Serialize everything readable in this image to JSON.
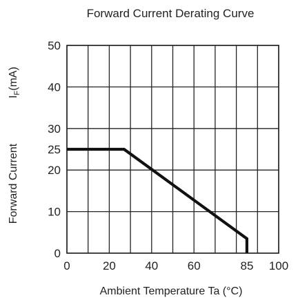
{
  "chart_data": {
    "type": "line",
    "title": "Forward Current Derating Curve",
    "xlabel": "Ambient Temperature Ta (°C)",
    "ylabel_main": "Forward Current",
    "ylabel_unit": "I",
    "ylabel_unit_sub": "F",
    "ylabel_unit_tail": "(mA)",
    "xlim": [
      0,
      100
    ],
    "ylim": [
      0,
      50
    ],
    "x_ticks": [
      "0",
      "20",
      "40",
      "60",
      "85",
      "100"
    ],
    "x_tick_values": [
      0,
      20,
      40,
      60,
      85,
      100
    ],
    "y_ticks": [
      "0",
      "10",
      "20",
      "25",
      "30",
      "40",
      "50"
    ],
    "y_tick_values": [
      0,
      10,
      20,
      25,
      30,
      40,
      50
    ],
    "grid_x": [
      0,
      10,
      20,
      30,
      40,
      50,
      60,
      70,
      80,
      90,
      100
    ],
    "grid_y": [
      0,
      10,
      20,
      30,
      40,
      50
    ],
    "grid": true,
    "series": [
      {
        "x": [
          0,
          27,
          85,
          85
        ],
        "y": [
          25,
          25,
          3.5,
          0
        ]
      }
    ]
  }
}
